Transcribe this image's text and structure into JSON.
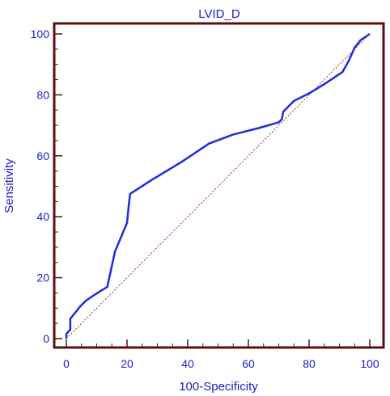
{
  "chart_data": {
    "type": "line",
    "title": "LVID_D",
    "xlabel": "100-Specificity",
    "ylabel": "Sensitivity",
    "xlim": [
      0,
      100
    ],
    "ylim": [
      0,
      100
    ],
    "xticks": [
      0,
      20,
      40,
      60,
      80,
      100
    ],
    "yticks": [
      0,
      20,
      40,
      60,
      80,
      100
    ],
    "grid": false,
    "colors": {
      "roc": "#1f2bdc",
      "reference": "#a03030",
      "frame": "#5a0f0f",
      "text": "#1c1cc8"
    },
    "series": [
      {
        "x": [
          0,
          0,
          1.3,
          1.3,
          2.5,
          4.5,
          6.5,
          9.5,
          13.5,
          16,
          20,
          20.5,
          21,
          28,
          38,
          47,
          55,
          63,
          70,
          71,
          71.5,
          75,
          80,
          85,
          91,
          93,
          95,
          97,
          100
        ],
        "y": [
          0,
          1.5,
          3,
          6.5,
          8,
          10.5,
          12.5,
          14.5,
          17,
          28.5,
          38,
          43,
          47.5,
          52,
          58,
          64,
          67,
          69,
          71,
          72,
          74.5,
          78,
          80.5,
          83.5,
          87.5,
          91,
          95.5,
          98,
          100
        ]
      },
      {
        "x": [
          0,
          100
        ],
        "y": [
          0,
          100
        ]
      }
    ]
  }
}
